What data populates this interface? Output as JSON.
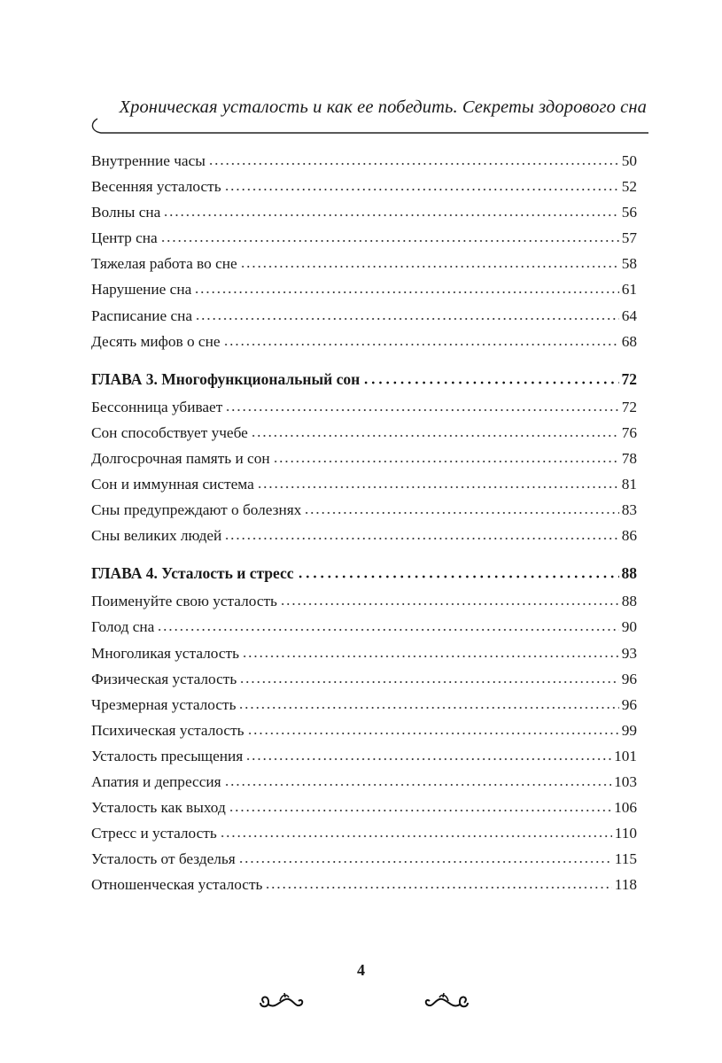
{
  "header": {
    "running_title": "Хроническая усталость и как ее победить. Секреты здорового сна"
  },
  "toc": [
    {
      "title": "Внутренние часы",
      "page": "50",
      "chapter": false
    },
    {
      "title": "Весенняя усталость",
      "page": "52",
      "chapter": false
    },
    {
      "title": "Волны сна",
      "page": "56",
      "chapter": false
    },
    {
      "title": "Центр сна",
      "page": "57",
      "chapter": false
    },
    {
      "title": "Тяжелая работа во сне",
      "page": "58",
      "chapter": false
    },
    {
      "title": "Нарушение сна",
      "page": "61",
      "chapter": false
    },
    {
      "title": "Расписание сна",
      "page": "64",
      "chapter": false
    },
    {
      "title": "Десять мифов о сне",
      "page": "68",
      "chapter": false
    },
    {
      "title": "ГЛАВА 3. Многофункциональный сон",
      "page": "72",
      "chapter": true
    },
    {
      "title": "Бессонница убивает",
      "page": "72",
      "chapter": false
    },
    {
      "title": "Сон способствует учебе",
      "page": "76",
      "chapter": false
    },
    {
      "title": "Долгосрочная память и сон",
      "page": "78",
      "chapter": false
    },
    {
      "title": "Сон и иммунная система",
      "page": "81",
      "chapter": false
    },
    {
      "title": "Сны предупреждают о болезнях",
      "page": "83",
      "chapter": false
    },
    {
      "title": "Сны великих людей",
      "page": "86",
      "chapter": false
    },
    {
      "title": "ГЛАВА 4. Усталость и стресс",
      "page": "88",
      "chapter": true
    },
    {
      "title": "Поименуйте свою усталость",
      "page": "88",
      "chapter": false
    },
    {
      "title": "Голод сна",
      "page": "90",
      "chapter": false
    },
    {
      "title": "Многоликая усталость",
      "page": "93",
      "chapter": false
    },
    {
      "title": "Физическая усталость",
      "page": "96",
      "chapter": false
    },
    {
      "title": "Чрезмерная усталость",
      "page": "96",
      "chapter": false
    },
    {
      "title": "Психическая усталость",
      "page": "99",
      "chapter": false
    },
    {
      "title": "Усталость пресыщения",
      "page": "101",
      "chapter": false
    },
    {
      "title": "Апатия и депрессия",
      "page": "103",
      "chapter": false
    },
    {
      "title": "Усталость как выход",
      "page": "106",
      "chapter": false
    },
    {
      "title": "Стресс и усталость",
      "page": "110",
      "chapter": false
    },
    {
      "title": "Усталость от безделья",
      "page": "115",
      "chapter": false
    },
    {
      "title": "Отношенческая усталость",
      "page": "118",
      "chapter": false
    }
  ],
  "footer": {
    "page_number": "4",
    "ornament_icon": "flourish-ornament"
  }
}
